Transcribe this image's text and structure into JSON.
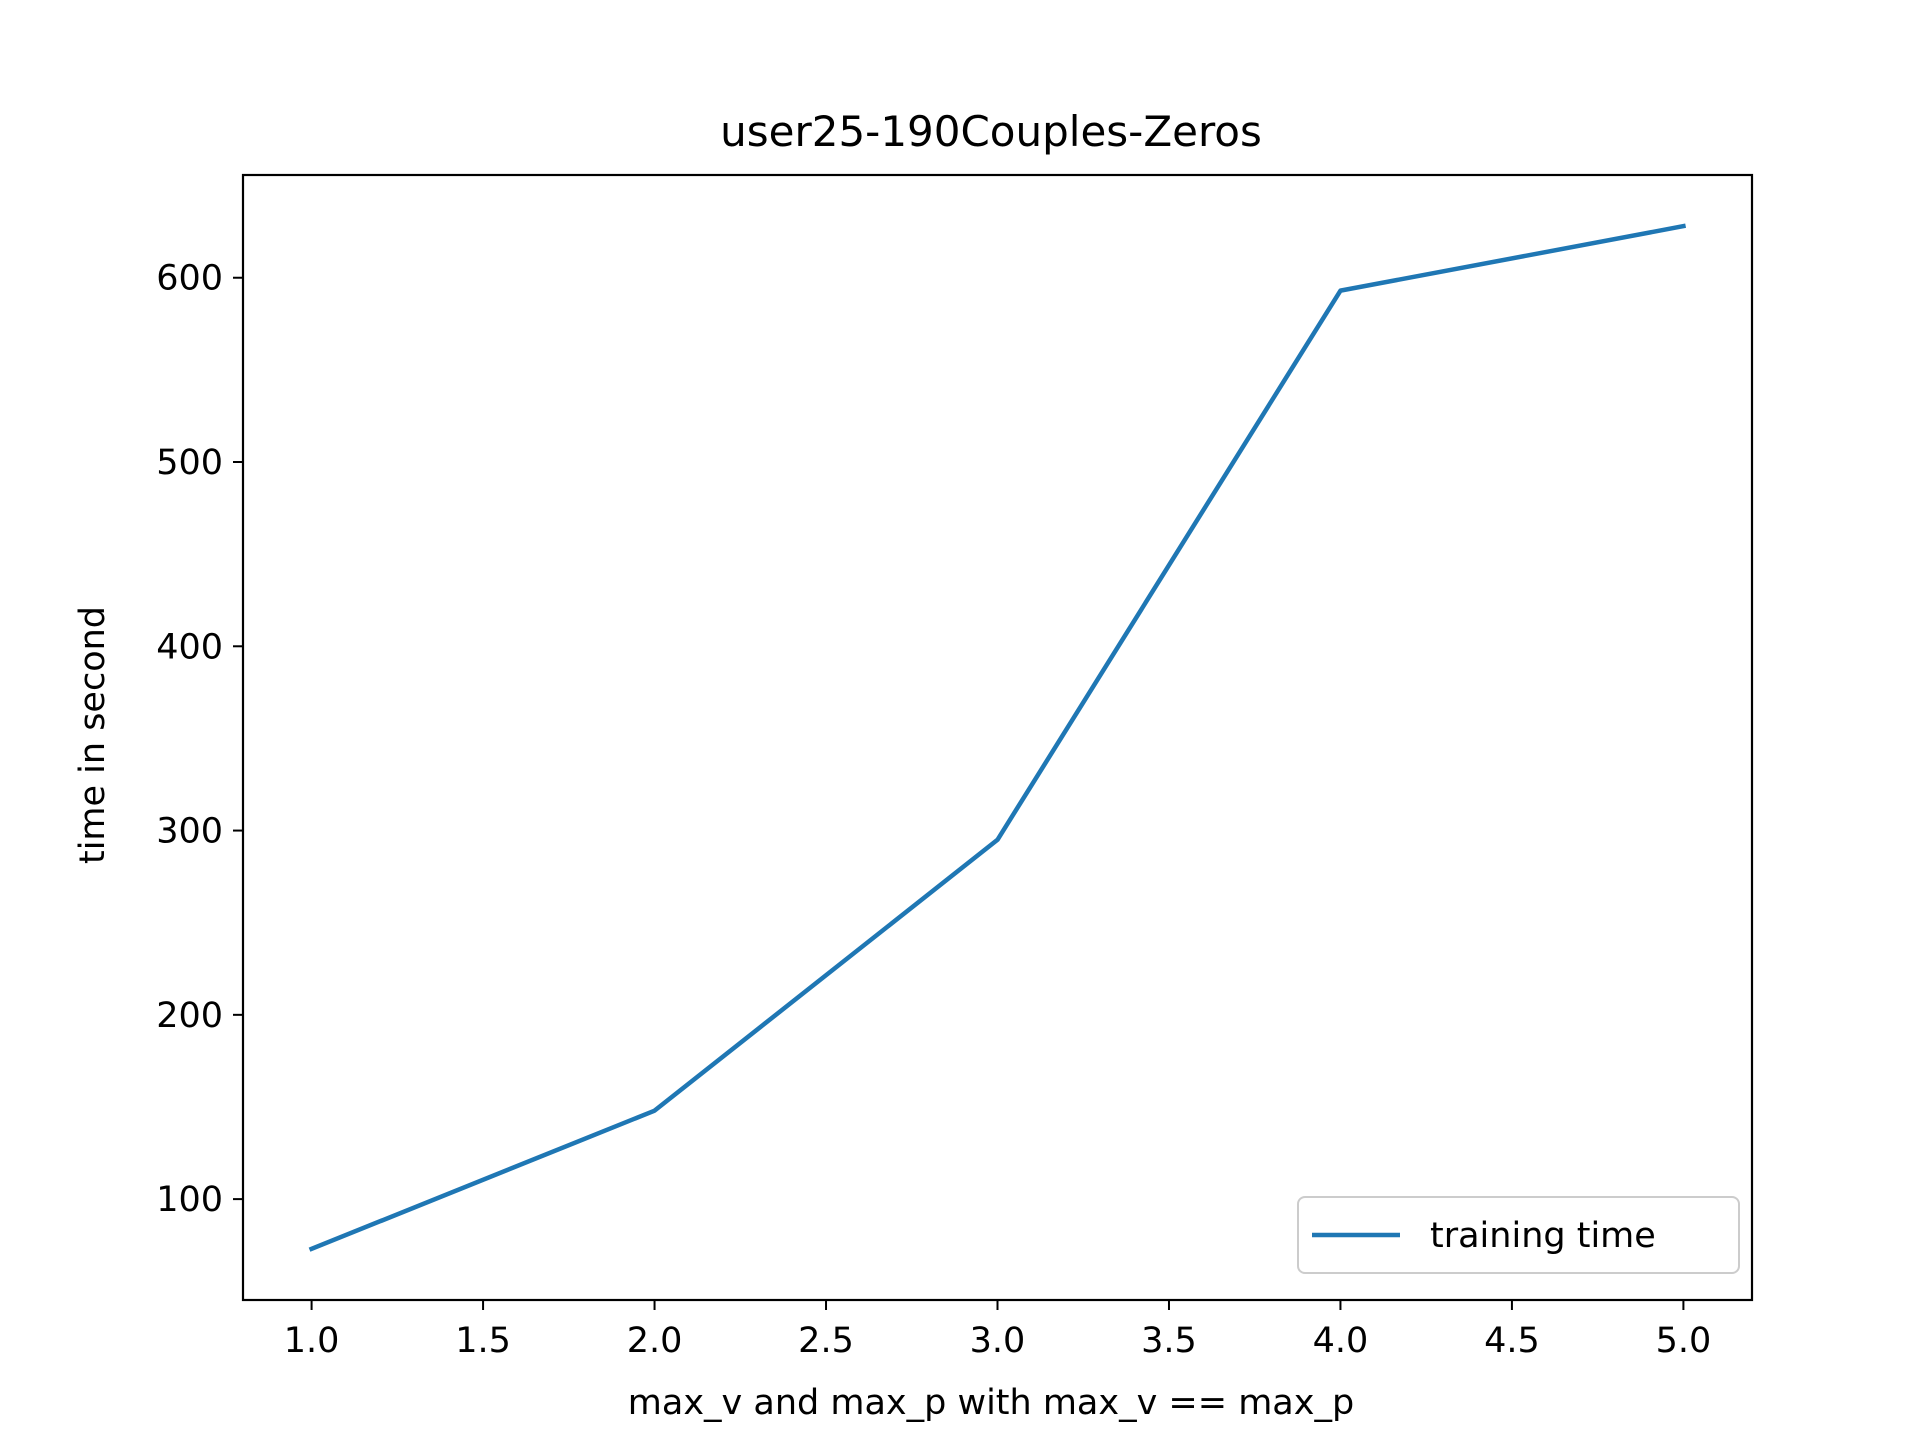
{
  "chart_data": {
    "type": "line",
    "title": "user25-190Couples-Zeros",
    "xlabel": "max_v and max_p with max_v == max_p",
    "ylabel": "time in second",
    "x": [
      1.0,
      2.0,
      3.0,
      4.0,
      5.0
    ],
    "series": [
      {
        "name": "training time",
        "color": "#1f77b4",
        "values": [
          73,
          148,
          295,
          593,
          628
        ]
      }
    ],
    "xlim": [
      0.8,
      5.2
    ],
    "ylim": [
      45.25,
      655.75
    ],
    "xticks": [
      1.0,
      1.5,
      2.0,
      2.5,
      3.0,
      3.5,
      4.0,
      4.5,
      5.0
    ],
    "xtick_labels": [
      "1.0",
      "1.5",
      "2.0",
      "2.5",
      "3.0",
      "3.5",
      "4.0",
      "4.5",
      "5.0"
    ],
    "yticks": [
      100,
      200,
      300,
      400,
      500,
      600
    ],
    "ytick_labels": [
      "100",
      "200",
      "300",
      "400",
      "500",
      "600"
    ],
    "grid": false,
    "legend_position": "lower right"
  }
}
